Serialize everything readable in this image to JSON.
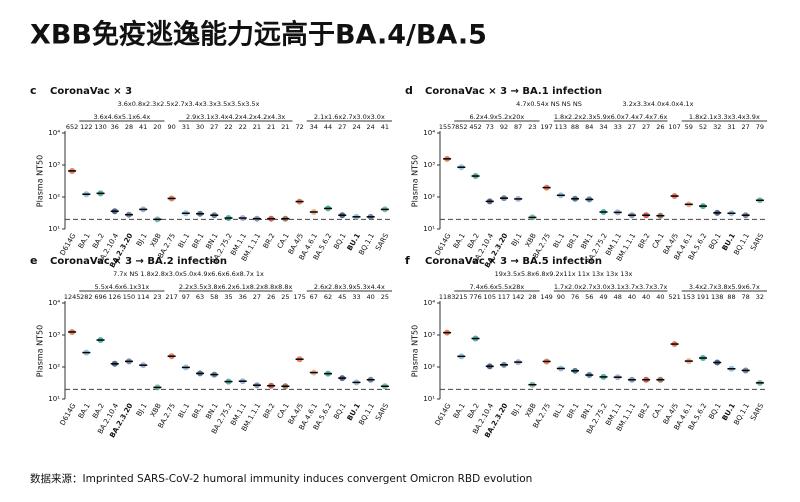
{
  "title": "XBB免疫逃逸能力远高于BA.4/BA.5",
  "footer": "数据来源：Imprinted SARS-CoV-2 humoral immunity induces convergent Omicron RBD evolution",
  "chart_data": [
    {
      "type": "strip",
      "letter": "c",
      "title": "CoronaVac × 3",
      "y_label": "Plasma NT50",
      "log_y": true,
      "threshold": 20,
      "bold": [
        4,
        20
      ],
      "categories": [
        "D614G",
        "BA.1",
        "BA.2",
        "BA.2.10.4",
        "BA.2.3.20",
        "BJ.1",
        "XBB",
        "BA.2.75",
        "BL.1",
        "BR.1",
        "BN.1",
        "BA.2.75.2",
        "BM.1.1",
        "BM.1.1.1",
        "BR.2",
        "CA.1",
        "BA.4/5",
        "BA.4.6.1",
        "BA.5.6.2",
        "BQ.1",
        "BU.1",
        "BQ.1.1",
        "SARS"
      ],
      "values": [
        652,
        122,
        130,
        36,
        28,
        41,
        20,
        90,
        31,
        30,
        27,
        22,
        22,
        21,
        21,
        21,
        72,
        34,
        44,
        27,
        24,
        24,
        41
      ],
      "colors": [
        "#e0603f",
        "#7fb3d5",
        "#2a9d8f",
        "#2c3e70",
        "#5a6b8c",
        "#8da0cb",
        "#5fa89c",
        "#e0603f",
        "#7fb3d5",
        "#2c5f7a",
        "#3d6b8f",
        "#2a9d8f",
        "#8da0cb",
        "#6b7fa3",
        "#c0392b",
        "#8b5a3c",
        "#e0603f",
        "#e8a07a",
        "#2a9d8f",
        "#2c3e70",
        "#7fb3d5",
        "#5a6b8c",
        "#5fa89c"
      ],
      "fold_top": [
        "3.6x0.8x2.3x2.5x2.7x3.4x3.3x3.5x3.5x3.5x"
      ],
      "fold_groups": [
        "3.6x4.6x5.1x6.4x",
        "2.9x3.1x3.4x4.2x4.2x4.2x4.3x",
        "2.1x1.6x2.7x3.0x3.0x"
      ],
      "ylim": [
        10,
        10000
      ],
      "yticks": [
        {
          "value": 10,
          "label": "10¹"
        },
        {
          "value": 100,
          "label": "10²"
        },
        {
          "value": 1000,
          "label": "10³"
        },
        {
          "value": 10000,
          "label": "10⁴"
        }
      ]
    },
    {
      "type": "strip",
      "letter": "d",
      "title": "CoronaVac × 3 → BA.1 infection",
      "y_label": "Plasma NT50",
      "log_y": true,
      "threshold": 20,
      "bold": [
        4,
        20
      ],
      "categories": [
        "D614G",
        "BA.1",
        "BA.2",
        "BA.2.10.4",
        "BA.2.3.20",
        "BJ.1",
        "XBB",
        "BA.2.75",
        "BL.1",
        "BR.1",
        "BN.1",
        "BA.2.75.2",
        "BM.1.1",
        "BM.1.1.1",
        "BR.2",
        "CA.1",
        "BA.4/5",
        "BA.4.6.1",
        "BA.5.6.2",
        "BQ.1",
        "BU.1",
        "BQ.1.1",
        "SARS"
      ],
      "values": [
        1557,
        852,
        452,
        73,
        92,
        87,
        23,
        197,
        113,
        88,
        84,
        34,
        33,
        27,
        27,
        26,
        107,
        59,
        52,
        32,
        31,
        27,
        79
      ],
      "colors": [
        "#e0603f",
        "#7fb3d5",
        "#2a9d8f",
        "#2c3e70",
        "#5a6b8c",
        "#8da0cb",
        "#5fa89c",
        "#e0603f",
        "#7fb3d5",
        "#2c5f7a",
        "#3d6b8f",
        "#2a9d8f",
        "#8da0cb",
        "#6b7fa3",
        "#c0392b",
        "#8b5a3c",
        "#e0603f",
        "#e8a07a",
        "#2a9d8f",
        "#2c3e70",
        "#7fb3d5",
        "#5a6b8c",
        "#5fa89c"
      ],
      "fold_top": [
        "4.7x0.54x NS  NS  NS",
        "3.2x3.3x4.0x4.0x4.1x"
      ],
      "fold_groups": [
        "6.2x4.9x5.2x20x",
        "1.8x2.2x2.3x5.9x6.0x7.4x7.4x7.6x",
        "1.8x2.1x3.3x3.4x3.9x"
      ],
      "ylim": [
        10,
        10000
      ],
      "yticks": [
        {
          "value": 10,
          "label": "10¹"
        },
        {
          "value": 100,
          "label": "10²"
        },
        {
          "value": 1000,
          "label": "10³"
        },
        {
          "value": 10000,
          "label": "10⁴"
        }
      ]
    },
    {
      "type": "strip",
      "letter": "e",
      "title": "CoronaVac × 3 → BA.2 infection",
      "y_label": "Plasma NT50",
      "log_y": true,
      "threshold": 20,
      "bold": [
        4,
        20
      ],
      "categories": [
        "D614G",
        "BA.1",
        "BA.2",
        "BA.2.10.4",
        "BA.2.3.20",
        "BJ.1",
        "XBB",
        "BA.2.75",
        "BL.1",
        "BR.1",
        "BN.1",
        "BA.2.75.2",
        "BM.1.1",
        "BM.1.1.1",
        "BR.2",
        "CA.1",
        "BA.4/5",
        "BA.4.6.1",
        "BA.5.6.2",
        "BQ.1",
        "BU.1",
        "BQ.1.1",
        "SARS"
      ],
      "values": [
        1245,
        282,
        696,
        126,
        150,
        114,
        23,
        217,
        97,
        63,
        58,
        35,
        36,
        27,
        26,
        25,
        175,
        67,
        62,
        45,
        33,
        40,
        25
      ],
      "colors": [
        "#e0603f",
        "#7fb3d5",
        "#2a9d8f",
        "#2c3e70",
        "#5a6b8c",
        "#8da0cb",
        "#5fa89c",
        "#e0603f",
        "#7fb3d5",
        "#2c5f7a",
        "#3d6b8f",
        "#2a9d8f",
        "#8da0cb",
        "#6b7fa3",
        "#c0392b",
        "#8b5a3c",
        "#e0603f",
        "#e8a07a",
        "#2a9d8f",
        "#2c3e70",
        "#7fb3d5",
        "#5a6b8c",
        "#5fa89c"
      ],
      "fold_top": [
        "7.7x NS 1.8x2.8x3.0x5.0x4.9x6.6x6.6x8.7x 1x"
      ],
      "fold_groups": [
        "5.5x4.6x6.1x31x",
        "2.2x3.5x3.8x6.2x6.1x8.2x8.8x8.8x",
        "2.6x2.8x3.9x5.3x4.4x"
      ],
      "ylim": [
        10,
        10000
      ],
      "yticks": [
        {
          "value": 10,
          "label": "10¹"
        },
        {
          "value": 100,
          "label": "10²"
        },
        {
          "value": 1000,
          "label": "10³"
        },
        {
          "value": 10000,
          "label": "10⁴"
        }
      ]
    },
    {
      "type": "strip",
      "letter": "f",
      "title": "CoronaVac × 3 → BA.5 infection",
      "y_label": "Plasma NT50",
      "log_y": true,
      "threshold": 20,
      "bold": [
        4,
        20
      ],
      "categories": [
        "D614G",
        "BA.1",
        "BA.2",
        "BA.2.10.4",
        "BA.2.3.20",
        "BJ.1",
        "XBB",
        "BA.2.75",
        "BL.1",
        "BR.1",
        "BN.1",
        "BA.2.75.2",
        "BM.1.1",
        "BM.1.1.1",
        "BR.2",
        "CA.1",
        "BA.4/5",
        "BA.4.6.1",
        "BA.5.6.2",
        "BQ.1",
        "BU.1",
        "BQ.1.1",
        "SARS"
      ],
      "values": [
        1183,
        215,
        776,
        105,
        117,
        142,
        28,
        149,
        90,
        76,
        56,
        49,
        48,
        40,
        40,
        40,
        521,
        153,
        191,
        138,
        88,
        78,
        32
      ],
      "colors": [
        "#e0603f",
        "#7fb3d5",
        "#2a9d8f",
        "#2c3e70",
        "#5a6b8c",
        "#8da0cb",
        "#5fa89c",
        "#e0603f",
        "#7fb3d5",
        "#2c5f7a",
        "#3d6b8f",
        "#2a9d8f",
        "#8da0cb",
        "#6b7fa3",
        "#c0392b",
        "#8b5a3c",
        "#e0603f",
        "#e8a07a",
        "#2a9d8f",
        "#2c3e70",
        "#7fb3d5",
        "#5a6b8c",
        "#5fa89c"
      ],
      "fold_top": [
        "19x3.5x5.8x6.8x9.2x11x 11x 13x 13x 13x"
      ],
      "fold_groups": [
        "7.4x6.6x5.5x28x",
        "1.7x2.0x2.7x3.0x3.1x3.7x3.7x3.7x",
        "3.4x2.7x3.8x5.9x6.7x"
      ],
      "ylim": [
        10,
        10000
      ],
      "yticks": [
        {
          "value": 10,
          "label": "10¹"
        },
        {
          "value": 100,
          "label": "10²"
        },
        {
          "value": 1000,
          "label": "10³"
        },
        {
          "value": 10000,
          "label": "10⁴"
        }
      ]
    }
  ]
}
